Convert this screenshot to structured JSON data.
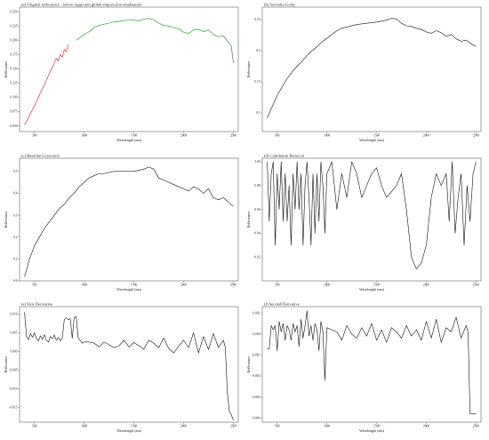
{
  "chart_data": [
    {
      "type": "line",
      "title": "(a) Original reflectance - before target and global empirical normalization",
      "xlabel": "Wavelength (nm)",
      "ylabel": "Reflectance",
      "xlim": [
        350,
        2550
      ],
      "ylim": [
        0.04,
        0.258
      ],
      "xticks": [
        500,
        1000,
        1500,
        2000,
        2500
      ],
      "yticks": [
        0.05,
        0.075,
        0.1,
        0.125,
        0.15,
        0.175,
        0.2,
        0.225,
        0.25
      ],
      "ytick_labels": [
        "0.050",
        "0.075",
        "0.100",
        "0.125",
        "0.150",
        "0.175",
        "0.200",
        "0.225",
        "0.250"
      ],
      "series": [
        {
          "color": "#e01010",
          "x": [
            400,
            420,
            440,
            460,
            480,
            500,
            520,
            540,
            560,
            580,
            600,
            620,
            640,
            660,
            680,
            700,
            720,
            740,
            760,
            780,
            800,
            820,
            840
          ],
          "y": [
            0.052,
            0.058,
            0.064,
            0.072,
            0.078,
            0.085,
            0.092,
            0.1,
            0.108,
            0.115,
            0.122,
            0.13,
            0.138,
            0.146,
            0.152,
            0.16,
            0.168,
            0.164,
            0.175,
            0.17,
            0.184,
            0.18,
            0.192
          ]
        },
        {
          "color": "#109010",
          "x": [
            920,
            960,
            1000,
            1050,
            1100,
            1150,
            1200,
            1250,
            1300,
            1350,
            1400,
            1450,
            1500,
            1550,
            1600,
            1650,
            1700,
            1750,
            1800,
            1850,
            1900,
            1950,
            2000,
            2050,
            2100,
            2150,
            2200,
            2250,
            2300,
            2350,
            2400,
            2450,
            2480,
            2500
          ],
          "y": [
            0.2,
            0.205,
            0.21,
            0.215,
            0.222,
            0.226,
            0.228,
            0.23,
            0.232,
            0.233,
            0.234,
            0.236,
            0.235,
            0.234,
            0.237,
            0.238,
            0.236,
            0.23,
            0.226,
            0.225,
            0.222,
            0.22,
            0.214,
            0.212,
            0.218,
            0.219,
            0.215,
            0.218,
            0.21,
            0.206,
            0.208,
            0.196,
            0.19,
            0.16
          ]
        }
      ]
    },
    {
      "type": "line",
      "title": "(b) Savitzky-Golay",
      "xlabel": "Wavelength (nm)",
      "ylabel": "Reflectance",
      "xlim": [
        350,
        2550
      ],
      "ylim": [
        0.07,
        0.27
      ],
      "xticks": [
        500,
        1000,
        1500,
        2000,
        2500
      ],
      "yticks": [
        0.1,
        0.15,
        0.2,
        0.25
      ],
      "ytick_labels": [
        "0.1",
        "0.15",
        "0.2",
        "0.25"
      ],
      "series": [
        {
          "color": "#111111",
          "x": [
            400,
            450,
            500,
            550,
            600,
            650,
            700,
            750,
            800,
            850,
            900,
            950,
            1000,
            1050,
            1100,
            1150,
            1200,
            1300,
            1400,
            1500,
            1600,
            1650,
            1700,
            1750,
            1800,
            1850,
            1900,
            1950,
            2000,
            2050,
            2100,
            2150,
            2200,
            2250,
            2300,
            2350,
            2400,
            2450,
            2500
          ],
          "y": [
            0.092,
            0.11,
            0.128,
            0.142,
            0.155,
            0.166,
            0.175,
            0.183,
            0.192,
            0.2,
            0.206,
            0.214,
            0.22,
            0.226,
            0.232,
            0.236,
            0.238,
            0.242,
            0.244,
            0.246,
            0.249,
            0.252,
            0.251,
            0.244,
            0.24,
            0.239,
            0.236,
            0.234,
            0.23,
            0.228,
            0.232,
            0.229,
            0.223,
            0.226,
            0.219,
            0.215,
            0.217,
            0.211,
            0.207
          ]
        }
      ]
    },
    {
      "type": "line",
      "title": "(c) Baseline Correction",
      "xlabel": "Wavelength (nm)",
      "ylabel": "Reflectance",
      "xlim": [
        350,
        2550
      ],
      "ylim": [
        0,
        0.56
      ],
      "xticks": [
        500,
        1000,
        1500,
        2000,
        2500
      ],
      "yticks": [
        0.0,
        0.1,
        0.2,
        0.3,
        0.4,
        0.5
      ],
      "ytick_labels": [
        "0.0",
        "0.1",
        "0.2",
        "0.3",
        "0.4",
        "0.5"
      ],
      "series": [
        {
          "color": "#111111",
          "x": [
            400,
            420,
            450,
            500,
            550,
            600,
            650,
            700,
            750,
            800,
            850,
            900,
            950,
            1000,
            1050,
            1100,
            1150,
            1200,
            1300,
            1400,
            1500,
            1600,
            1650,
            1700,
            1750,
            1800,
            1850,
            1900,
            1950,
            2000,
            2050,
            2100,
            2150,
            2200,
            2250,
            2300,
            2350,
            2400,
            2450,
            2500
          ],
          "y": [
            0.02,
            0.05,
            0.1,
            0.16,
            0.2,
            0.24,
            0.27,
            0.3,
            0.33,
            0.35,
            0.38,
            0.4,
            0.43,
            0.45,
            0.47,
            0.48,
            0.49,
            0.49,
            0.5,
            0.5,
            0.5,
            0.51,
            0.52,
            0.51,
            0.47,
            0.46,
            0.45,
            0.44,
            0.43,
            0.42,
            0.41,
            0.43,
            0.42,
            0.4,
            0.42,
            0.38,
            0.37,
            0.38,
            0.36,
            0.34
          ]
        }
      ]
    },
    {
      "type": "line",
      "title": "(d) Continuum Removal",
      "xlabel": "Wavelength (nm)",
      "ylabel": "Reflectance",
      "xlim": [
        350,
        2550
      ],
      "ylim": [
        0.9,
        1.003
      ],
      "xticks": [
        500,
        1000,
        1500,
        2000,
        2500
      ],
      "yticks": [
        0.92,
        0.94,
        0.96,
        0.98,
        1.0
      ],
      "ytick_labels": [
        "0.92",
        "0.94",
        "0.96",
        "0.98",
        "1.00"
      ],
      "series": [
        {
          "color": "#111111",
          "x": [
            400,
            420,
            440,
            460,
            480,
            500,
            520,
            540,
            560,
            580,
            600,
            620,
            640,
            660,
            680,
            700,
            720,
            740,
            760,
            780,
            800,
            820,
            840,
            860,
            880,
            900,
            920,
            940,
            960,
            980,
            1000,
            1050,
            1100,
            1150,
            1200,
            1250,
            1300,
            1350,
            1400,
            1450,
            1500,
            1550,
            1600,
            1650,
            1700,
            1750,
            1800,
            1850,
            1900,
            1950,
            2000,
            2050,
            2100,
            2150,
            2200,
            2230,
            2260,
            2290,
            2320,
            2350,
            2380,
            2410,
            2440,
            2470,
            2500
          ],
          "y": [
            1.0,
            0.95,
            0.99,
            1.0,
            0.93,
            0.99,
            0.96,
            1.0,
            0.95,
            0.99,
            0.95,
            0.98,
            0.93,
            0.99,
            0.96,
            1.0,
            0.96,
            0.99,
            0.93,
            0.98,
            1.0,
            0.97,
            0.93,
            0.99,
            0.94,
            0.99,
            0.95,
            1.0,
            0.98,
            0.94,
            0.99,
            1.0,
            0.96,
            0.99,
            0.97,
            1.0,
            0.99,
            0.97,
            0.98,
            0.99,
            0.995,
            0.98,
            0.97,
            0.975,
            0.98,
            0.99,
            0.96,
            0.92,
            0.91,
            0.915,
            0.93,
            0.97,
            0.99,
            0.98,
            0.99,
            0.95,
            1.0,
            0.94,
            0.97,
            0.99,
            0.93,
            0.98,
            0.95,
            0.99,
            1.0
          ]
        }
      ]
    },
    {
      "type": "line",
      "title": "(e) First Derivative",
      "xlabel": "Wavelength (nm)",
      "ylabel": "Reflectance",
      "xlim": [
        350,
        2550
      ],
      "ylim": [
        -0.019,
        0.012
      ],
      "xticks": [
        500,
        1000,
        1500,
        2000,
        2500
      ],
      "yticks": [
        0.01,
        0.005,
        0.0,
        -0.005,
        -0.01,
        -0.015
      ],
      "ytick_labels": [
        "0.010",
        "0.005",
        "0.000",
        "-0.005",
        "-0.010",
        "-0.015"
      ],
      "series": [
        {
          "color": "#111111",
          "x": [
            400,
            420,
            440,
            460,
            480,
            500,
            520,
            540,
            560,
            580,
            600,
            620,
            640,
            660,
            680,
            700,
            720,
            740,
            760,
            780,
            800,
            820,
            840,
            860,
            880,
            900,
            920,
            940,
            960,
            980,
            1000,
            1050,
            1100,
            1150,
            1200,
            1250,
            1300,
            1350,
            1400,
            1450,
            1500,
            1550,
            1600,
            1650,
            1700,
            1750,
            1800,
            1850,
            1900,
            1950,
            2000,
            2050,
            2100,
            2150,
            2200,
            2250,
            2300,
            2350,
            2400,
            2420,
            2440,
            2460,
            2480,
            2500
          ],
          "y": [
            0.0105,
            0.004,
            0.0032,
            0.0048,
            0.0038,
            0.005,
            0.0035,
            0.0028,
            0.0042,
            0.0032,
            0.0045,
            0.003,
            0.0025,
            0.004,
            0.0034,
            0.0044,
            0.003,
            0.0038,
            0.0028,
            0.0036,
            0.0085,
            0.009,
            0.0085,
            0.0088,
            0.0035,
            0.0092,
            0.0093,
            0.0036,
            0.003,
            0.0022,
            0.0025,
            0.0025,
            0.0022,
            0.0012,
            0.0025,
            0.0018,
            0.001,
            0.0015,
            0.003,
            0.0012,
            0.0024,
            0.0015,
            0.0006,
            0.003,
            0.0022,
            0.001,
            0.0036,
            0.0008,
            -0.0004,
            0.0014,
            0.003,
            0.001,
            0.005,
            -0.0004,
            0.004,
            0.0005,
            0.0048,
            0.001,
            0.003,
            0.001,
            -0.011,
            -0.016,
            -0.017,
            -0.0185
          ]
        }
      ]
    },
    {
      "type": "line",
      "title": "(f) Second Derivative",
      "xlabel": "Wavelength (nm)",
      "ylabel": "Reflectance",
      "xlim": [
        350,
        2550
      ],
      "ylim": [
        -0.0042,
        0.0013
      ],
      "xticks": [
        500,
        1000,
        1500,
        2000,
        2500
      ],
      "yticks": [
        0.001,
        0.0,
        -0.001,
        -0.002,
        -0.003,
        -0.004
      ],
      "ytick_labels": [
        "0.001",
        "0.000",
        "-0.001",
        "-0.002",
        "-0.003",
        "-0.004"
      ],
      "series": [
        {
          "color": "#111111",
          "x": [
            400,
            420,
            440,
            460,
            480,
            500,
            520,
            540,
            560,
            580,
            600,
            620,
            640,
            660,
            680,
            700,
            720,
            740,
            760,
            780,
            800,
            820,
            840,
            860,
            880,
            900,
            920,
            940,
            960,
            980,
            1000,
            1050,
            1100,
            1150,
            1200,
            1250,
            1300,
            1350,
            1400,
            1450,
            1500,
            1550,
            1600,
            1650,
            1700,
            1750,
            1800,
            1850,
            1900,
            1950,
            2000,
            2050,
            2100,
            2150,
            2200,
            2250,
            2300,
            2350,
            2400,
            2420,
            2440,
            2460,
            2480,
            2500
          ],
          "y": [
            -0.0007,
            -0.0007,
            0.0004,
            0.0002,
            0.0004,
            -0.0008,
            0.0006,
            0.0001,
            0.0005,
            -0.0003,
            0.0004,
            0.0002,
            -0.0003,
            0.0005,
            0.0001,
            0.0004,
            -0.0006,
            0.0007,
            -0.0002,
            0.0004,
            0.0011,
            -0.0001,
            0.0004,
            -0.0003,
            0.0005,
            0.0002,
            -0.0008,
            0.0006,
            0.0001,
            -0.0022,
            0.0003,
            0.0002,
            0.0001,
            -0.0003,
            0.0004,
            0.0,
            -0.0002,
            0.0003,
            -0.0001,
            0.0005,
            -0.0003,
            0.0002,
            -0.0004,
            0.0003,
            0.0001,
            -0.0002,
            0.0004,
            -0.0001,
            0.0002,
            -0.0003,
            0.0006,
            -0.0002,
            0.0007,
            -0.0004,
            0.0003,
            0.0001,
            0.0008,
            -0.0002,
            0.0004,
            0.0001,
            -0.0038,
            -0.0038,
            -0.0038,
            -0.0038
          ]
        }
      ]
    }
  ]
}
